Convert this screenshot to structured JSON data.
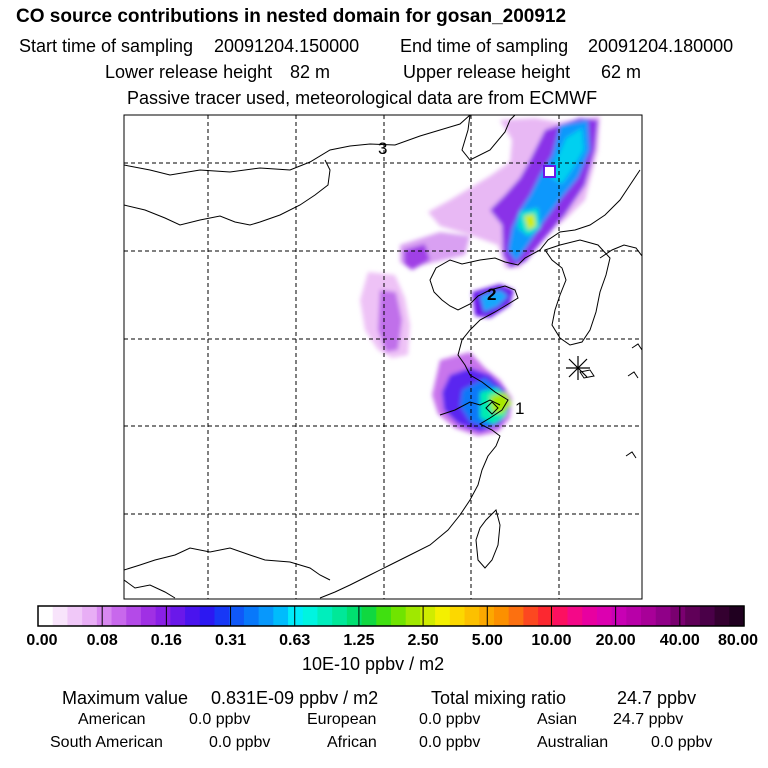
{
  "header": {
    "title": "CO  source contributions in nested domain for gosan_200912",
    "start_label": "Start time of sampling",
    "start_value": "20091204.150000",
    "end_label": "End time of sampling",
    "end_value": "20091204.180000",
    "lower_label": "Lower release height",
    "lower_value": "82 m",
    "upper_label": "Upper release height",
    "upper_value": "62 m",
    "note": "Passive tracer used, meteorological data are from ECMWF"
  },
  "map": {
    "labels": [
      {
        "text": "3",
        "id": "trajectory-label-3"
      },
      {
        "text": "2",
        "id": "trajectory-label-2"
      },
      {
        "text": "1",
        "id": "trajectory-label-1"
      }
    ],
    "receptor_marker": "asterisk-icon"
  },
  "colorbar": {
    "colors": [
      "#ffffff",
      "#f8e4fb",
      "#f0c8f8",
      "#e8aef5",
      "#d888f0",
      "#c868ec",
      "#b44ae8",
      "#a030e4",
      "#8a20e6",
      "#6a18ea",
      "#4a14ee",
      "#2c18f2",
      "#1838f6",
      "#1058f8",
      "#0878fa",
      "#0898fc",
      "#00bcfc",
      "#00ecfa",
      "#00f4e0",
      "#00eebc",
      "#00e898",
      "#00e070",
      "#10d840",
      "#40e010",
      "#70e400",
      "#a0e800",
      "#d0ec00",
      "#f4f000",
      "#fcd800",
      "#fcc000",
      "#fca800",
      "#fc9000",
      "#fc7010",
      "#fc4820",
      "#fc2830",
      "#fc1060",
      "#f40888",
      "#e800a0",
      "#dc00b0",
      "#c800b4",
      "#b800a8",
      "#a80098",
      "#900088",
      "#7a0070",
      "#600058",
      "#4a0048",
      "#340030",
      "#200020"
    ],
    "ticks": [
      "0.00",
      "0.08",
      "0.16",
      "0.31",
      "0.63",
      "1.25",
      "2.50",
      "5.00",
      "10.00",
      "20.00",
      "40.00",
      "80.00"
    ],
    "unit": "10E-10 ppbv / m2"
  },
  "summary": {
    "max_label": "Maximum value",
    "max_value": "0.831E-09 ppbv / m2",
    "total_label": "Total mixing ratio",
    "total_value": "24.7 ppbv",
    "regions": [
      {
        "name": "American",
        "value": "0.0 ppbv"
      },
      {
        "name": "European",
        "value": "0.0 ppbv"
      },
      {
        "name": "Asian",
        "value": "24.7 ppbv"
      },
      {
        "name": "South American",
        "value": "0.0 ppbv"
      },
      {
        "name": "African",
        "value": "0.0 ppbv"
      },
      {
        "name": "Australian",
        "value": "0.0 ppbv"
      }
    ]
  }
}
